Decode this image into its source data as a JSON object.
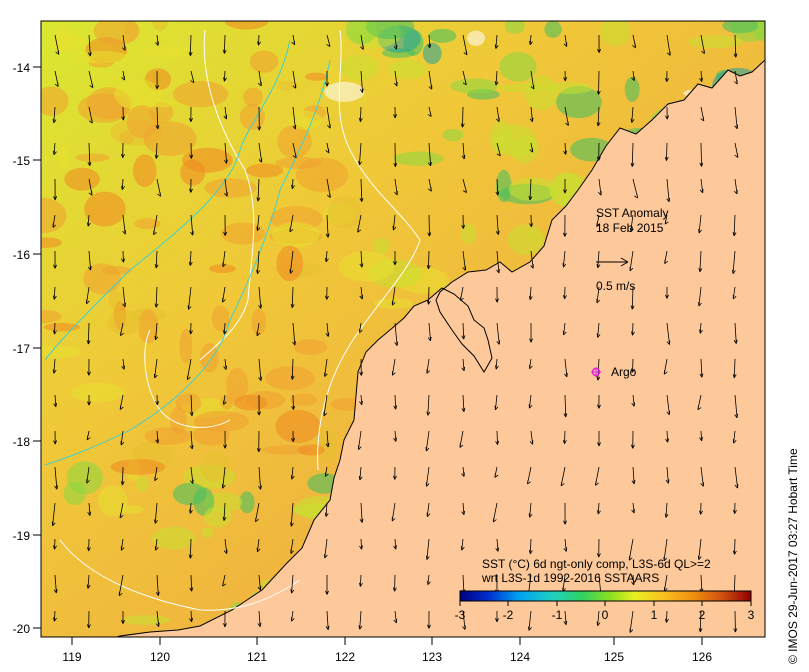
{
  "map": {
    "title": "SST Anomaly",
    "date": "18 Feb 2015",
    "scale_arrow_label": "0.5 m/s",
    "argo_label": "Argo",
    "lon_ticks": [
      "119",
      "120",
      "121",
      "122",
      "123",
      "124",
      "125",
      "126"
    ],
    "lat_ticks": [
      "-14",
      "-15",
      "-16",
      "-17",
      "-18",
      "-19",
      "-20"
    ],
    "credit": "© IMOS 29-Jun-2017 03:27 Hobart Time",
    "land_color": "#fdc99a",
    "argo_color": "#e020e0"
  },
  "colorbar": {
    "line1": "SST (°C) 6d ngt-only comp, L3S-6d QL>=2",
    "line2": "wrt L3S-1d 1992-2016 SSTAARS",
    "ticks": [
      "-3",
      "-2",
      "-1",
      "0",
      "1",
      "2",
      "3"
    ],
    "colors": [
      "#00007f",
      "#0030d0",
      "#00a0f0",
      "#20d0c0",
      "#30d060",
      "#90e020",
      "#e8f020",
      "#f8c020",
      "#f09010",
      "#d05010",
      "#900000"
    ]
  }
}
